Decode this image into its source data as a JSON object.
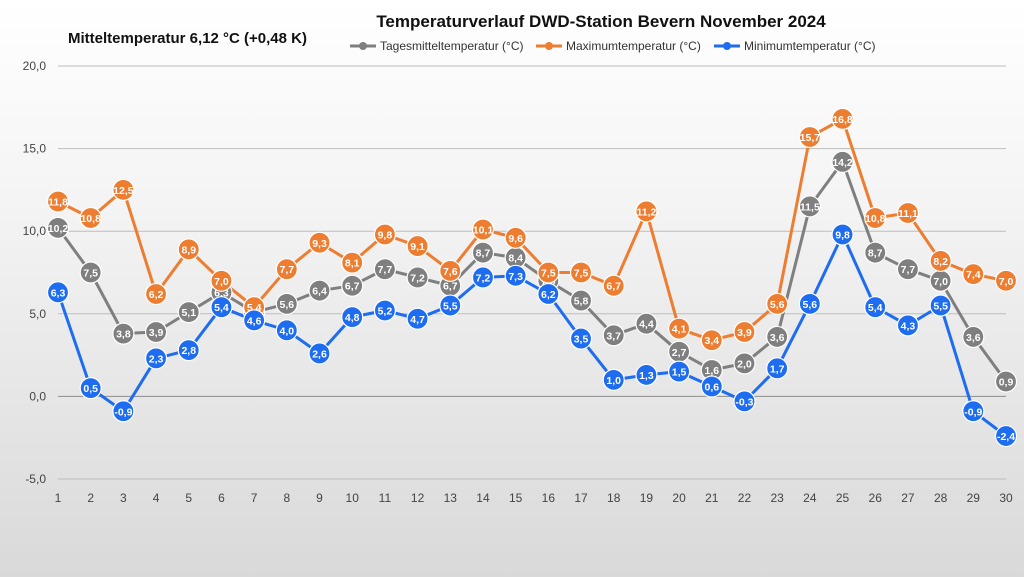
{
  "chart_data": {
    "type": "line",
    "title": "Temperaturverlauf  DWD-Station  Bevern November 2024",
    "subtitle": "Mitteltemperatur 6,12 °C (+0,48 K)",
    "xlabel": "",
    "ylabel": "",
    "x": [
      1,
      2,
      3,
      4,
      5,
      6,
      7,
      8,
      9,
      10,
      11,
      12,
      13,
      14,
      15,
      16,
      17,
      18,
      19,
      20,
      21,
      22,
      23,
      24,
      25,
      26,
      27,
      28,
      29,
      30
    ],
    "ylim": [
      -5,
      20
    ],
    "yticks": [
      -5,
      0,
      5,
      10,
      15,
      20
    ],
    "ytick_labels": [
      "-5,0",
      "0,0",
      "5,0",
      "10,0",
      "15,0",
      "20,0"
    ],
    "grid": true,
    "legend_position": "top",
    "series": [
      {
        "name": "Tagesmitteltemperatur (°C)",
        "color": "#7f7f7f",
        "values": [
          10.2,
          7.5,
          3.8,
          3.9,
          5.1,
          6.3,
          5.1,
          5.6,
          6.4,
          6.7,
          7.7,
          7.2,
          6.7,
          8.7,
          8.4,
          7.0,
          5.8,
          3.7,
          4.4,
          2.7,
          1.6,
          2.0,
          3.6,
          11.5,
          14.2,
          8.7,
          7.7,
          7.0,
          3.6,
          0.9
        ],
        "labels": [
          "10,2",
          "7,5",
          "3,8",
          "3,9",
          "5,1",
          "6,3",
          "5,1",
          "5,6",
          "6,4",
          "6,7",
          "7,7",
          "7,2",
          "6,7",
          "8,7",
          "8,4",
          "7,0",
          "5,8",
          "3,7",
          "4,4",
          "2,7",
          "1,6",
          "2,0",
          "3,6",
          "11,5",
          "14,2",
          "8,7",
          "7,7",
          "7,0",
          "3,6",
          "0,9"
        ]
      },
      {
        "name": "Maximumtemperatur (°C)",
        "color": "#ed7d31",
        "values": [
          11.8,
          10.8,
          12.5,
          6.2,
          8.9,
          7.0,
          5.4,
          7.7,
          9.3,
          8.1,
          9.8,
          9.1,
          7.6,
          10.1,
          9.6,
          7.5,
          7.5,
          6.7,
          11.2,
          4.1,
          3.4,
          3.9,
          5.6,
          15.7,
          16.8,
          10.8,
          11.1,
          8.2,
          7.4,
          7.0
        ],
        "labels": [
          "11,8",
          "10,8",
          "12,5",
          "6,2",
          "8,9",
          "7,0",
          "5,4",
          "7,7",
          "9,3",
          "8,1",
          "9,8",
          "9,1",
          "7,6",
          "10,1",
          "9,6",
          "7,5",
          "7,5",
          "6,7",
          "11,2",
          "4,1",
          "3,4",
          "3,9",
          "5,6",
          "15,7",
          "16,8",
          "10,8",
          "11,1",
          "8,2",
          "7,4",
          "7,0"
        ]
      },
      {
        "name": "Minimumtemperatur (°C)",
        "color": "#1e6cf0",
        "values": [
          6.3,
          0.5,
          -0.9,
          2.3,
          2.8,
          5.4,
          4.6,
          4.0,
          2.6,
          4.8,
          5.2,
          4.7,
          5.5,
          7.2,
          7.3,
          6.2,
          3.5,
          1.0,
          1.3,
          1.5,
          0.6,
          -0.3,
          1.7,
          5.6,
          9.8,
          5.4,
          4.3,
          5.5,
          -0.9,
          -2.4
        ],
        "labels": [
          "6,3",
          "0,5",
          "-0,9",
          "2,3",
          "2,8",
          "5,4",
          "4,6",
          "4,0",
          "2,6",
          "4,8",
          "5,2",
          "4,7",
          "5,5",
          "7,2",
          "7,3",
          "6,2",
          "3,5",
          "1,0",
          "1,3",
          "1,5",
          "0,6",
          "-0,3",
          "1,7",
          "5,6",
          "9,8",
          "5,4",
          "4,3",
          "5,5",
          "-0,9",
          "-2,4"
        ]
      }
    ]
  }
}
